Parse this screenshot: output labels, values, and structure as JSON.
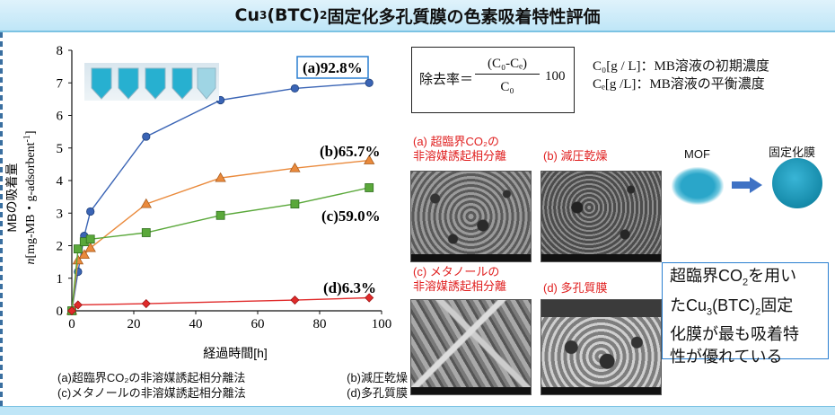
{
  "title": {
    "prefix": "Cu",
    "sub1": "3",
    "mid": "(BTC)",
    "sub2": "2",
    "suffix": "固定化多孔質膜の色素吸着特性評価"
  },
  "chart_data": {
    "type": "scatter",
    "xlabel": "経過時間[h]",
    "ylabel_line1": "MBの吸着量",
    "ylabel_line2_italic": "n",
    "ylabel_line2": "[mg-MB・g-adsorbent",
    "ylabel_sup": "-1",
    "ylabel_close": "]",
    "xlim": [
      0,
      100
    ],
    "ylim": [
      0,
      8
    ],
    "xticks": [
      "0",
      "20",
      "40",
      "60",
      "80",
      "100"
    ],
    "yticks": [
      "0",
      "1",
      "2",
      "3",
      "4",
      "5",
      "6",
      "7",
      "8"
    ],
    "series": [
      {
        "name": "(a)92.8%",
        "color": "#3a64b5",
        "marker": "circle",
        "x": [
          0,
          2,
          4,
          6,
          24,
          48,
          72,
          96
        ],
        "y": [
          0,
          1.2,
          2.3,
          3.05,
          5.35,
          6.47,
          6.83,
          7.0
        ]
      },
      {
        "name": "(b)65.7%",
        "color": "#ea8a3c",
        "marker": "triangle",
        "x": [
          0,
          2,
          4,
          6,
          24,
          48,
          72,
          96
        ],
        "y": [
          0,
          1.55,
          1.72,
          1.93,
          3.28,
          4.08,
          4.38,
          4.62
        ]
      },
      {
        "name": "(c)59.0%",
        "color": "#5aa83a",
        "marker": "square",
        "x": [
          0,
          2,
          4,
          6,
          24,
          48,
          72,
          96
        ],
        "y": [
          0,
          1.9,
          2.12,
          2.2,
          2.4,
          2.93,
          3.28,
          3.78
        ]
      },
      {
        "name": "(d)6.3%",
        "color": "#e02a2a",
        "marker": "diamond",
        "x": [
          0,
          2,
          24,
          72,
          96
        ],
        "y": [
          0,
          0.18,
          0.22,
          0.33,
          0.4
        ]
      }
    ]
  },
  "legend": {
    "a": "(a)超臨界CO₂の非溶媒誘起相分離法",
    "b": "(b)減圧乾燥",
    "c": "(c)メタノールの非溶媒誘起相分離法",
    "d": "(d)多孔質膜"
  },
  "formula": {
    "label": "除去率＝",
    "numerator": "(C₀-Cₑ)",
    "denominator": "C₀",
    "factor": "100"
  },
  "definitions": {
    "c0": "C₀[g / L]：MB溶液の初期濃度",
    "ce": "Cₑ[g /L]：MB溶液の平衡濃度"
  },
  "photos": {
    "a_line1": "(a) 超臨界CO₂の",
    "a_line2": "非溶媒誘起相分離",
    "b": "(b) 減圧乾燥",
    "c_line1": "(c) メタノールの",
    "c_line2": "非溶媒誘起相分離",
    "d": "(d) 多孔質膜"
  },
  "mof": {
    "label": "MOF",
    "membrane_label": "固定化膜"
  },
  "conclusion": {
    "l1a": "超臨界CO",
    "l1sub": "2",
    "l1b": "を用い",
    "l2a": "たCu",
    "l2sub1": "3",
    "l2b": "(BTC)",
    "l2sub2": "2",
    "l2c": "固定",
    "l3": "化膜が最も吸着特",
    "l4": "性が優れている"
  },
  "colors": {
    "accent": "#2a7fd1",
    "title_bg": "#bfe6f7"
  }
}
